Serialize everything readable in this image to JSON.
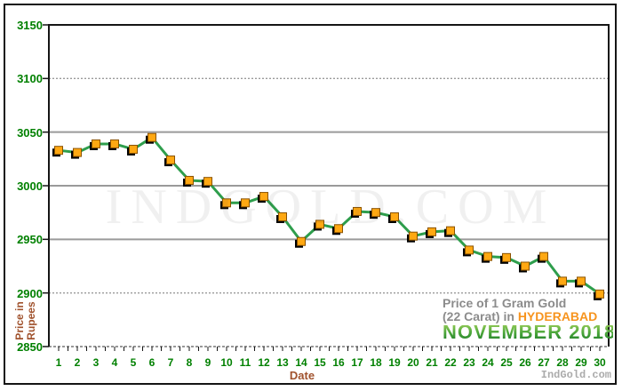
{
  "page": {
    "watermark": "INDGOLD.COM",
    "brand_footer": "IndGold.com"
  },
  "title_block": {
    "line1": "Price of 1 Gram Gold",
    "line2_prefix": "(22 Carat) in ",
    "city": "HYDERABAD",
    "period": "NOVEMBER 2018"
  },
  "axes": {
    "y_title_line1": "Price in",
    "y_title_line2": "Rupees",
    "x_title": "Date",
    "y_ticks": [
      3150,
      3100,
      3050,
      3000,
      2950,
      2900,
      2850
    ],
    "dotted_gridlines": [
      3100,
      2900
    ]
  },
  "colors": {
    "axis_label_green": "#008000",
    "axis_title_brown": "#A0522D",
    "line_green": "#2E9E4C",
    "marker_orange": "#FFA812",
    "marker_border": "#8A5200",
    "marker_shadow": "#000000",
    "gridline_gray": "#9A9A9A",
    "title_gray": "#8C8C8C",
    "city_orange": "#F7941E",
    "period_green": "#3DA53D",
    "footer_gray": "#ABABAB"
  },
  "chart_data": {
    "type": "line",
    "title": "Price of 1 Gram Gold (22 Carat) in HYDERABAD — NOVEMBER 2018",
    "xlabel": "Date",
    "ylabel": "Price in Rupees",
    "x": [
      1,
      2,
      3,
      4,
      5,
      6,
      7,
      8,
      9,
      10,
      11,
      12,
      13,
      14,
      15,
      16,
      17,
      18,
      19,
      20,
      21,
      22,
      23,
      24,
      25,
      26,
      27,
      28,
      29,
      30
    ],
    "values": [
      3033,
      3031,
      3039,
      3039,
      3034,
      3045,
      3024,
      3005,
      3004,
      2984,
      2984,
      2990,
      2971,
      2948,
      2964,
      2960,
      2976,
      2975,
      2971,
      2953,
      2957,
      2958,
      2940,
      2934,
      2933,
      2925,
      2934,
      2911,
      2911,
      2899
    ],
    "ylim": [
      2850,
      3150
    ],
    "grid": true,
    "legend": null,
    "marker": "square"
  }
}
